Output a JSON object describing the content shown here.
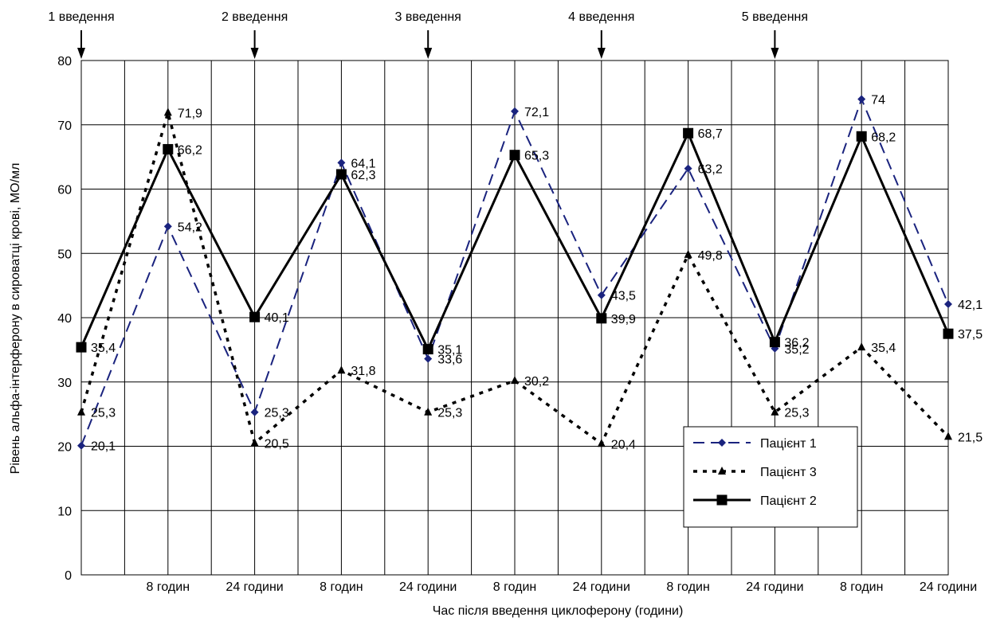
{
  "chart_data": {
    "type": "line",
    "title": "",
    "xlabel": "Час після введення циклоферону (години)",
    "ylabel": "Рівень альфа-інтерферону в сироватці крові, МО/мл",
    "ylim": [
      0,
      80
    ],
    "yticks": [
      0,
      10,
      20,
      30,
      40,
      50,
      60,
      70,
      80
    ],
    "grid": true,
    "legend_position": "bottom-right",
    "x_tick_labels": [
      "",
      "8 годин",
      "24 години",
      "8 годин",
      "24 години",
      "8 годин",
      "24 години",
      "8 годин",
      "24 години",
      "8 годин",
      "24 години"
    ],
    "injections": [
      {
        "label": "1 введення",
        "at_point": 0
      },
      {
        "label": "2 введення",
        "at_point": 2
      },
      {
        "label": "3 введення",
        "at_point": 4
      },
      {
        "label": "4 введення",
        "at_point": 6
      },
      {
        "label": "5 введення",
        "at_point": 8
      }
    ],
    "series": [
      {
        "name": "Пацієнт 1",
        "color": "#1a237e",
        "line_style": "dashed",
        "marker": "diamond",
        "values": [
          20.1,
          54.2,
          25.3,
          64.1,
          33.6,
          72.1,
          43.5,
          63.2,
          35.2,
          74.0,
          42.1
        ],
        "labels": [
          "20,1",
          "54,2",
          "25,3",
          "64,1",
          "33,6",
          "72,1",
          "43,5",
          "63,2",
          "35,2",
          "74",
          "42,1"
        ]
      },
      {
        "name": "Пацієнт 3",
        "color": "#000000",
        "line_style": "dotted",
        "marker": "triangle",
        "values": [
          25.3,
          71.9,
          20.5,
          31.8,
          25.3,
          30.2,
          20.4,
          49.8,
          25.3,
          35.4,
          21.5
        ],
        "labels": [
          "25,3",
          "71,9",
          "20,5",
          "31,8",
          "25,3",
          "30,2",
          "20,4",
          "49,8",
          "25,3",
          "35,4",
          "21,5"
        ]
      },
      {
        "name": "Пацієнт 2",
        "color": "#000000",
        "line_style": "solid",
        "marker": "square",
        "values": [
          35.4,
          66.2,
          40.1,
          62.3,
          35.1,
          65.3,
          39.9,
          68.7,
          36.2,
          68.2,
          37.5
        ],
        "labels": [
          "35,4",
          "66,2",
          "40,1",
          "62,3",
          "35,1",
          "65,3",
          "39,9",
          "68,7",
          "36,2",
          "68,2",
          "37,5"
        ]
      }
    ]
  }
}
